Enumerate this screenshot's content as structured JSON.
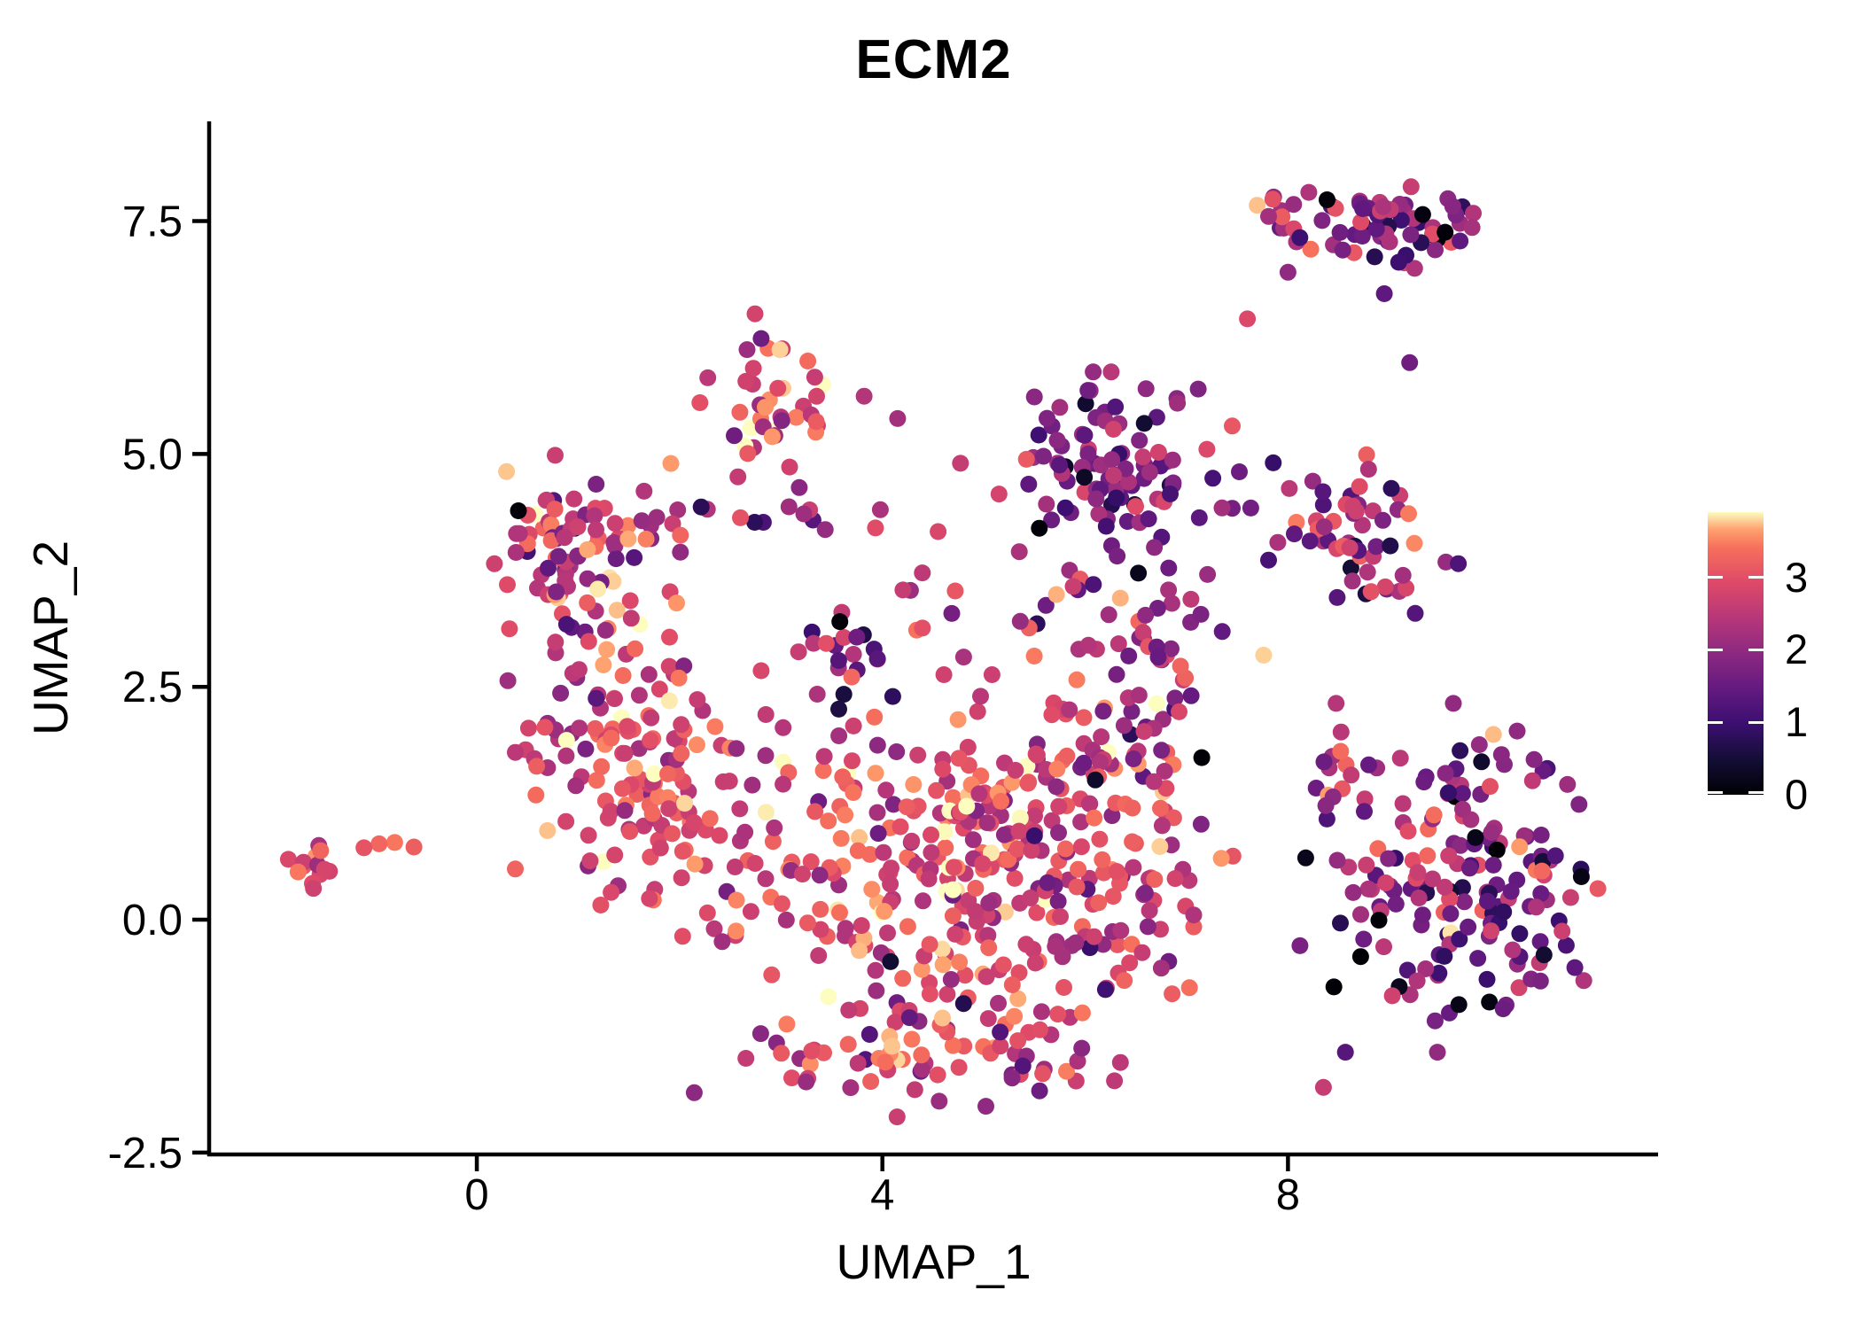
{
  "chart_data": {
    "type": "scatter",
    "title": "ECM2",
    "xlabel": "UMAP_1",
    "ylabel": "UMAP_2",
    "x_ticks": [
      {
        "v": 0,
        "label": "0"
      },
      {
        "v": 4,
        "label": "4"
      },
      {
        "v": 8,
        "label": "8"
      }
    ],
    "y_ticks": [
      {
        "v": 7.5,
        "label": "7.5"
      },
      {
        "v": 5.0,
        "label": "5.0"
      },
      {
        "v": 2.5,
        "label": "2.5"
      },
      {
        "v": 0.0,
        "label": "0.0"
      },
      {
        "v": -2.5,
        "label": "-2.5"
      }
    ],
    "x_range": [
      -2.64,
      11.65
    ],
    "y_range": [
      -2.52,
      8.57
    ],
    "grid": false,
    "legend_position": "right",
    "point_radius": 9.5,
    "seed": 20,
    "colorbar": {
      "vmin": 0,
      "vmax": 3.9,
      "ticks": [
        {
          "v": 0,
          "label": "0"
        },
        {
          "v": 1,
          "label": "1"
        },
        {
          "v": 2,
          "label": "2"
        },
        {
          "v": 3,
          "label": "3"
        }
      ],
      "palette": "magma",
      "stops": [
        [
          0.0,
          "#000004"
        ],
        [
          0.125,
          "#140E36"
        ],
        [
          0.25,
          "#3B0F70"
        ],
        [
          0.375,
          "#641A80"
        ],
        [
          0.5,
          "#8C2981"
        ],
        [
          0.625,
          "#B73779"
        ],
        [
          0.75,
          "#DE4968"
        ],
        [
          0.875,
          "#F7705C"
        ],
        [
          0.9375,
          "#FE9F6D"
        ],
        [
          1.0,
          "#FCFDBF"
        ]
      ]
    },
    "clusters": [
      {
        "name": "far-left",
        "cx": -1.62,
        "cy": 0.6,
        "sx": 0.16,
        "sy": 0.11,
        "n": 13,
        "vmean": 2.9,
        "vsd": 0.45
      },
      {
        "name": "far-left-outliers",
        "cx": -1.0,
        "cy": 0.74,
        "sx": 0.18,
        "sy": 0.05,
        "n": 3,
        "vmean": 3.1,
        "vsd": 0.3
      },
      {
        "name": "left-upper",
        "cx": 1.0,
        "cy": 4.05,
        "sx": 0.42,
        "sy": 0.4,
        "n": 78,
        "vmean": 2.55,
        "vsd": 0.75
      },
      {
        "name": "left-mid",
        "cx": 1.25,
        "cy": 2.55,
        "sx": 0.45,
        "sy": 0.55,
        "n": 55,
        "vmean": 2.7,
        "vsd": 0.6
      },
      {
        "name": "left-center-warm",
        "cx": 1.7,
        "cy": 1.35,
        "sx": 0.55,
        "sy": 0.6,
        "n": 110,
        "vmean": 2.95,
        "vsd": 0.5
      },
      {
        "name": "top-middle",
        "cx": 2.95,
        "cy": 5.7,
        "sx": 0.28,
        "sy": 0.35,
        "n": 34,
        "vmean": 2.9,
        "vsd": 0.55
      },
      {
        "name": "top-middle-tail",
        "cx": 2.7,
        "cy": 4.95,
        "sx": 0.2,
        "sy": 0.25,
        "n": 7,
        "vmean": 2.7,
        "vsd": 0.5
      },
      {
        "name": "bridge-row",
        "cx": 2.75,
        "cy": 4.33,
        "sx": 0.75,
        "sy": 0.1,
        "n": 17,
        "vmean": 2.1,
        "vsd": 0.75
      },
      {
        "name": "mid-clump",
        "cx": 3.55,
        "cy": 2.95,
        "sx": 0.28,
        "sy": 0.28,
        "n": 16,
        "vmean": 1.9,
        "vsd": 0.8
      },
      {
        "name": "central-main",
        "cx": 4.55,
        "cy": 0.55,
        "sx": 1.05,
        "sy": 0.95,
        "n": 300,
        "vmean": 2.9,
        "vsd": 0.55
      },
      {
        "name": "central-bottom",
        "cx": 4.35,
        "cy": -1.45,
        "sx": 0.95,
        "sy": 0.3,
        "n": 65,
        "vmean": 2.7,
        "vsd": 0.6
      },
      {
        "name": "central-upper-sparse",
        "cx": 4.9,
        "cy": 3.35,
        "sx": 0.75,
        "sy": 0.3,
        "n": 22,
        "vmean": 2.35,
        "vsd": 0.7
      },
      {
        "name": "central-right",
        "cx": 6.2,
        "cy": 0.8,
        "sx": 0.65,
        "sy": 0.85,
        "n": 100,
        "vmean": 2.6,
        "vsd": 0.7
      },
      {
        "name": "right-arm",
        "cx": 6.65,
        "cy": 2.75,
        "sx": 0.35,
        "sy": 0.55,
        "n": 48,
        "vmean": 2.2,
        "vsd": 0.8
      },
      {
        "name": "mid-upper",
        "cx": 6.25,
        "cy": 4.8,
        "sx": 0.5,
        "sy": 0.45,
        "n": 95,
        "vmean": 1.85,
        "vsd": 0.75
      },
      {
        "name": "right-mid",
        "cx": 8.6,
        "cy": 4.2,
        "sx": 0.45,
        "sy": 0.38,
        "n": 58,
        "vmean": 1.95,
        "vsd": 0.85
      },
      {
        "name": "top-right",
        "cx": 8.95,
        "cy": 7.45,
        "sx": 0.42,
        "sy": 0.2,
        "n": 62,
        "vmean": 1.85,
        "vsd": 0.9
      },
      {
        "name": "top-right-left-sub",
        "cx": 7.98,
        "cy": 7.5,
        "sx": 0.22,
        "sy": 0.18,
        "n": 13,
        "vmean": 2.6,
        "vsd": 0.7
      },
      {
        "name": "right-lower",
        "cx": 9.75,
        "cy": 0.45,
        "sx": 0.68,
        "sy": 0.78,
        "n": 175,
        "vmean": 1.9,
        "vsd": 0.9
      },
      {
        "name": "right-lower-fringe",
        "cx": 8.55,
        "cy": 1.2,
        "sx": 0.25,
        "sy": 0.5,
        "n": 14,
        "vmean": 2.3,
        "vsd": 0.7
      }
    ],
    "extra_points": [
      [
        -0.62,
        0.78,
        3.2
      ],
      [
        0.41,
        4.39,
        0.05
      ],
      [
        3.58,
        3.2,
        0.07
      ],
      [
        3.82,
        5.62,
        2.4
      ],
      [
        4.15,
        5.38,
        2.2
      ],
      [
        4.77,
        4.9,
        2.6
      ],
      [
        5.15,
        4.57,
        2.8
      ],
      [
        5.35,
        3.95,
        2.3
      ],
      [
        5.75,
        5.5,
        2.2
      ],
      [
        6.6,
        5.7,
        2.0
      ],
      [
        7.2,
        5.05,
        2.9
      ],
      [
        7.45,
        5.3,
        3.1
      ],
      [
        7.35,
        4.42,
        2.2
      ],
      [
        7.9,
        4.05,
        2.3
      ],
      [
        8.0,
        6.95,
        2.0
      ],
      [
        8.95,
        6.72,
        1.4
      ],
      [
        9.2,
        5.98,
        1.6
      ],
      [
        7.6,
        6.45,
        2.9
      ],
      [
        9.55,
        7.38,
        0.05
      ],
      [
        7.15,
        1.74,
        0.04
      ],
      [
        6.1,
        1.5,
        0.4
      ],
      [
        8.35,
        -1.8,
        2.6
      ],
      [
        2.2,
        5.55,
        3.0
      ],
      [
        1.65,
        4.6,
        2.4
      ],
      [
        1.9,
        2.35,
        3.85
      ],
      [
        2.05,
        1.25,
        3.8
      ],
      [
        3.62,
        2.42,
        0.55
      ],
      [
        3.57,
        2.26,
        0.6
      ],
      [
        4.08,
        -0.45,
        0.45
      ],
      [
        4.8,
        -0.9,
        0.7
      ],
      [
        5.5,
        0.9,
        0.95
      ],
      [
        6.2,
        -0.75,
        1.0
      ]
    ]
  }
}
